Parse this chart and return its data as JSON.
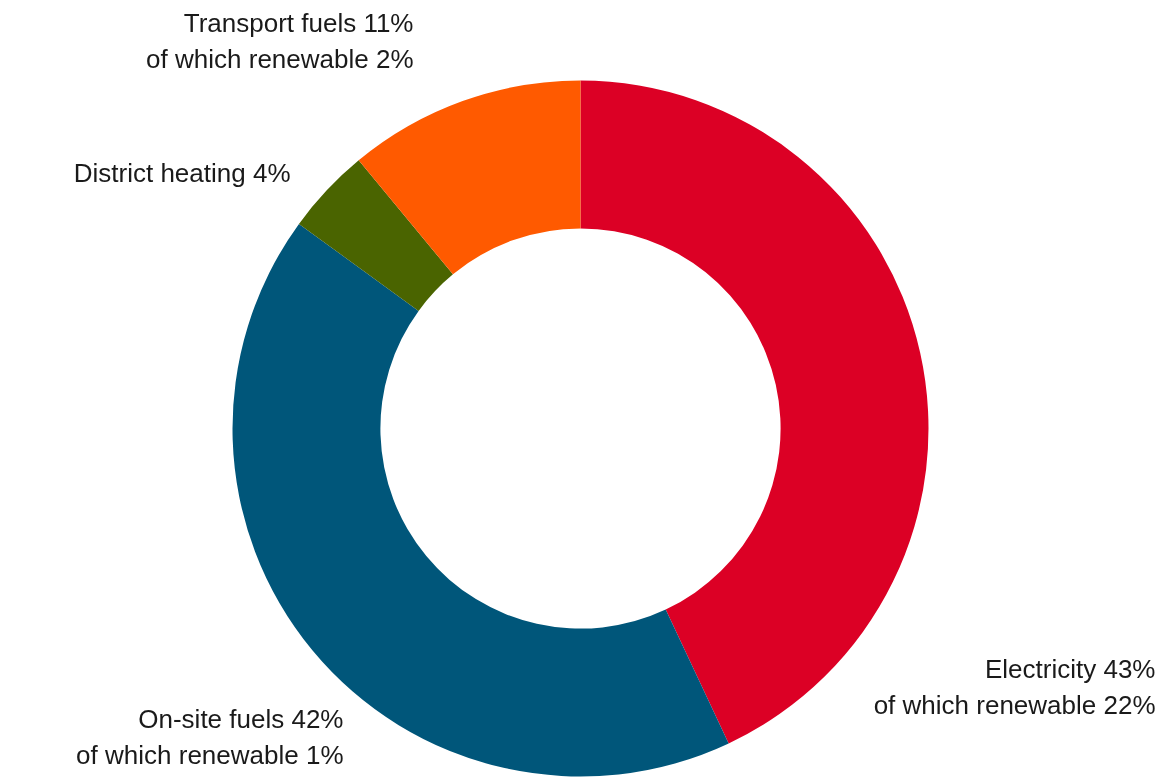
{
  "chart_data": {
    "type": "donut",
    "categories": [
      "Electricity 43%\nof which renewable 22%",
      "On-site fuels 42%\nof which renewable 1%",
      "District heating 4%",
      "Transport fuels 11%\nof which renewable 2%"
    ],
    "values": [
      43,
      42,
      4,
      11
    ],
    "colors": [
      "#dc0025",
      "#00567a",
      "#4a6400",
      "#ff5a00"
    ]
  }
}
